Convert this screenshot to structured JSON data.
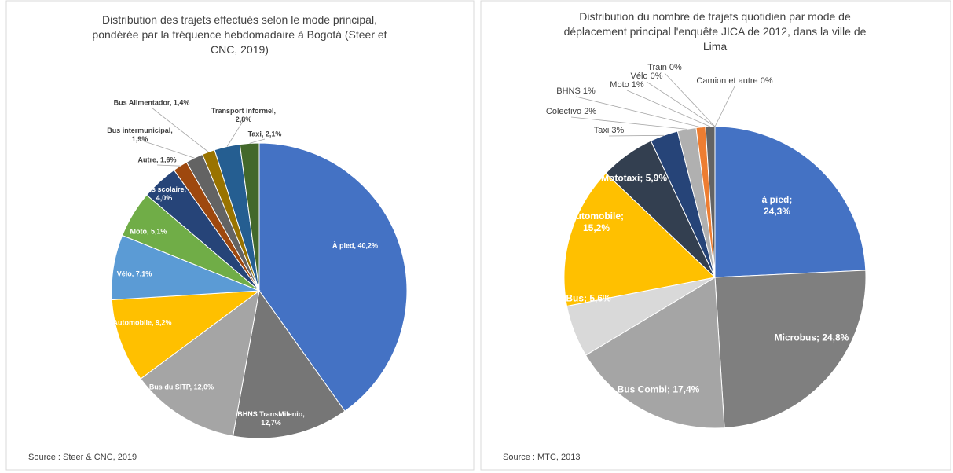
{
  "chart_data": [
    {
      "type": "pie",
      "title": "Distribution des trajets effectués selon le mode principal,\npondérée par la fréquence hebdomadaire à Bogotá (Steer et\nCNC, 2019)",
      "source": "Source : Steer & CNC, 2019",
      "values": [
        40.2,
        12.7,
        12.0,
        9.2,
        7.1,
        5.1,
        4.0,
        1.6,
        1.9,
        1.4,
        2.8,
        2.1
      ],
      "value_labels": [
        "À pied, 40,2%",
        "BHNS TransMilenio,\n12,7%",
        "Bus du SITP, 12,0%",
        "Automobile, 9,2%",
        "Vélo, 7,1%",
        "Moto, 5,1%",
        "Bus scolaire,\n4,0%",
        "Autre, 1,6%",
        "Bus intermunicipal,\n1,9%",
        "Bus Alimentador, 1,4%",
        "Transport informel,\n2,8%",
        "Taxi, 2,1%"
      ],
      "colors": [
        "#4472c4",
        "#767676",
        "#a5a5a5",
        "#ffc000",
        "#5b9bd5",
        "#70ad47",
        "#264478",
        "#9e480e",
        "#636363",
        "#997300",
        "#255e91",
        "#43682b"
      ]
    },
    {
      "type": "pie",
      "title": "Distribution du nombre de trajets quotidien par mode de\ndéplacement principal l'enquête JICA de 2012, dans la ville de\nLima",
      "source": "Source : MTC, 2013",
      "values": [
        24.3,
        24.8,
        17.4,
        5.6,
        15.2,
        5.9,
        3,
        2,
        1,
        1,
        0,
        0,
        0
      ],
      "value_labels": [
        "à pied;\n24,3%",
        "Microbus; 24,8%",
        "Bus Combi; 17,4%",
        "Bus; 5,6%",
        "Automobile;\n15,2%",
        "Mototaxi; 5,9%",
        "Taxi 3%",
        "Colectivo 2%",
        "BHNS 1%",
        "Moto 1%",
        "Vélo 0%",
        "Train 0%",
        "Camion et autre 0%"
      ],
      "colors": [
        "#4472c4",
        "#7f7f7f",
        "#a5a5a5",
        "#d9d9d9",
        "#ffc000",
        "#333f50",
        "#264478",
        "#b0b0b0",
        "#ed7d31",
        "#636363",
        "#997300",
        "#5b9bd5",
        "#43682b"
      ]
    }
  ]
}
